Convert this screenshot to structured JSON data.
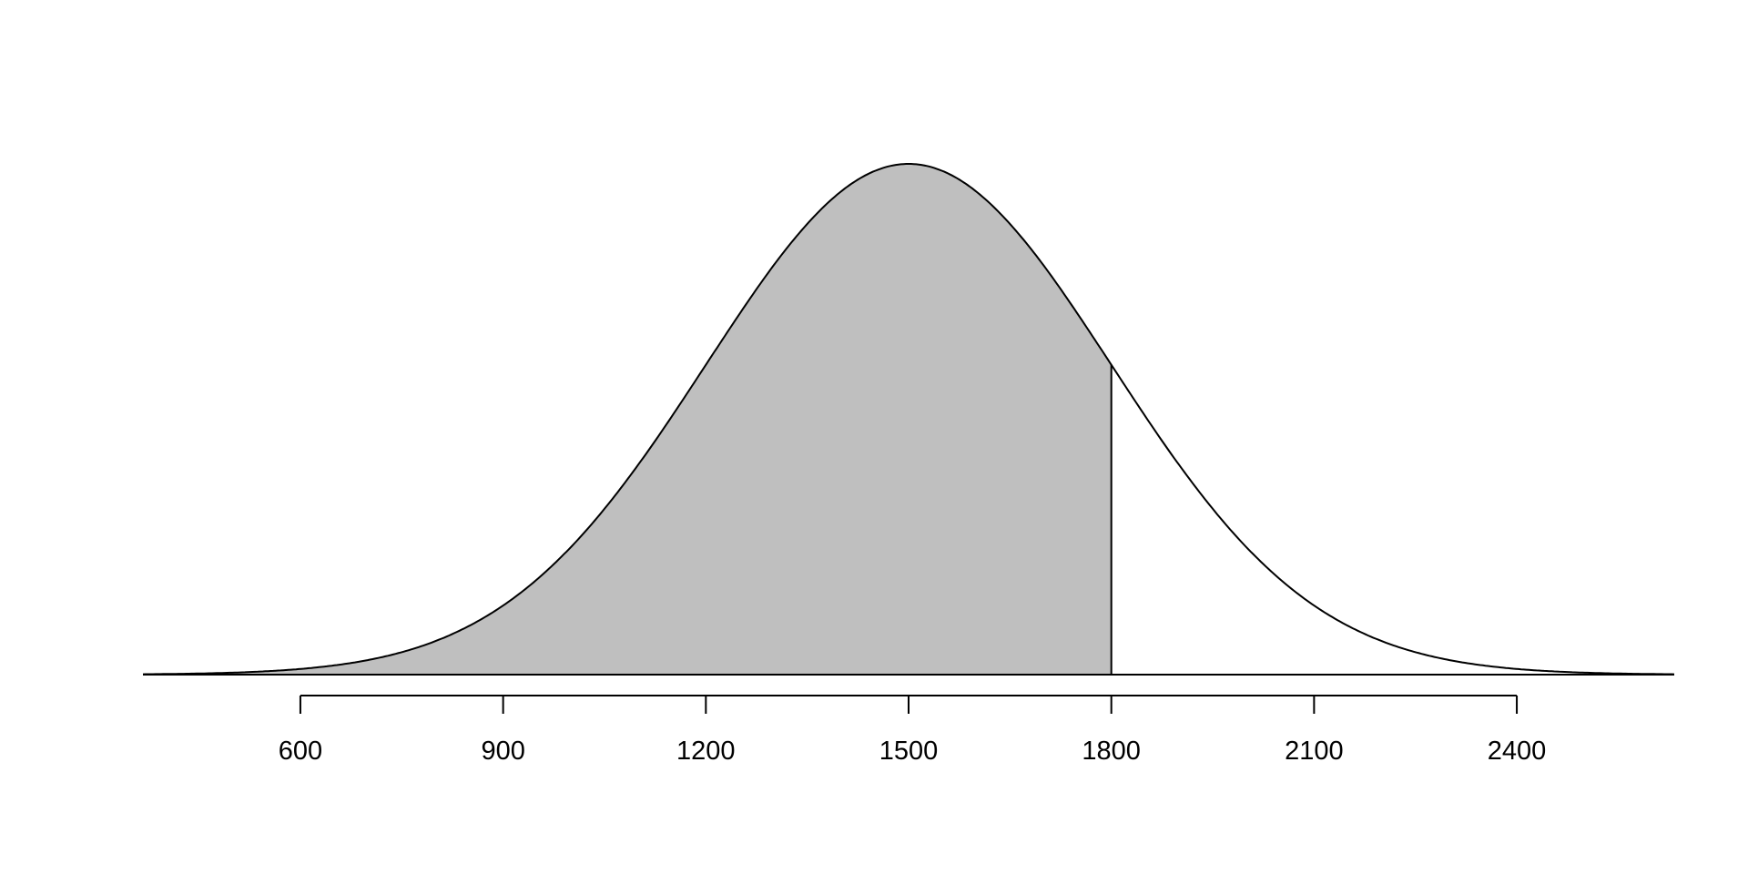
{
  "chart_data": {
    "type": "area",
    "distribution": "normal",
    "mean": 1500,
    "sd": 300,
    "shaded_region": {
      "from": null,
      "to": 1800
    },
    "xlim": [
      367,
      2633
    ],
    "x_ticks": [
      600,
      900,
      1200,
      1500,
      1800,
      2100,
      2400
    ],
    "x_tick_labels": [
      "600",
      "900",
      "1200",
      "1500",
      "1800",
      "2100",
      "2400"
    ],
    "title": "",
    "xlabel": "",
    "ylabel": "",
    "grid": false,
    "colors": {
      "shade": "#bfbfbf",
      "line": "#000000"
    }
  }
}
